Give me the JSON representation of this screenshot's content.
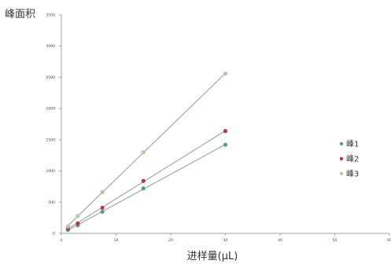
{
  "chart_data": {
    "type": "scatter",
    "ylabel": "峰面积",
    "xlabel": "进样量(μL)",
    "xlim": [
      0,
      100
    ],
    "ylim": [
      0,
      3500
    ],
    "x_ticks": [
      "0",
      "10",
      "20",
      "30",
      "40",
      "50",
      "60"
    ],
    "y_ticks": [
      "0",
      "500",
      "1000",
      "1500",
      "2000",
      "2500",
      "3000",
      "3500"
    ],
    "trendlines": true,
    "legend_position": "right",
    "series": [
      {
        "name": "峰1",
        "color": "#4a9e94",
        "points": [
          [
            2,
            55
          ],
          [
            5,
            130
          ],
          [
            12.5,
            345
          ],
          [
            25,
            720
          ],
          [
            50,
            1420
          ]
        ]
      },
      {
        "name": "峰2",
        "color": "#b03a48",
        "points": [
          [
            2,
            80
          ],
          [
            5,
            160
          ],
          [
            12.5,
            410
          ],
          [
            25,
            840
          ],
          [
            50,
            1640
          ]
        ]
      },
      {
        "name": "峰3",
        "color": "#b5c7a3",
        "points": [
          [
            2,
            110
          ],
          [
            5,
            280
          ],
          [
            12.5,
            660
          ],
          [
            25,
            1300
          ],
          [
            50,
            2560
          ]
        ]
      }
    ]
  }
}
